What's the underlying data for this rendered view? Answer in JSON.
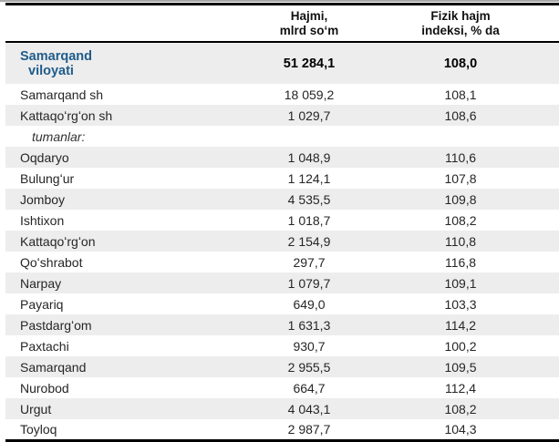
{
  "colors": {
    "accent_blue": "#1F5C8C",
    "band_gray": "#EDEDED",
    "rule_black": "#000000",
    "top_strip_gray": "#A9A9A9"
  },
  "table": {
    "header": {
      "col2_line1": "Hajmi,",
      "col2_line2": "mlrd soʻm",
      "col3_line1": "Fizik hajm",
      "col3_line2": "indeksi, % da"
    },
    "total": {
      "label_line1": "Samarqand",
      "label_line2": "viloyati",
      "value": "51 284,1",
      "index": "108,0"
    },
    "rows": [
      {
        "label": "Samarqand sh",
        "value": "18 059,2",
        "index": "108,1"
      },
      {
        "label": "Kattaqoʻrgʻon sh",
        "value": "1 029,7",
        "index": "108,6"
      },
      {
        "label": "tumanlar:",
        "value": "",
        "index": ""
      },
      {
        "label": "Oqdaryo",
        "value": "1 048,9",
        "index": "110,6"
      },
      {
        "label": "Bulungʻur",
        "value": "1 124,1",
        "index": "107,8"
      },
      {
        "label": "Jomboy",
        "value": "4 535,5",
        "index": "109,8"
      },
      {
        "label": "Ishtixon",
        "value": "1 018,7",
        "index": "108,2"
      },
      {
        "label": "Kattaqoʻrgʻon",
        "value": "2 154,9",
        "index": "110,8"
      },
      {
        "label": "Qoʻshrabot",
        "value": "297,7",
        "index": "116,8"
      },
      {
        "label": "Narpay",
        "value": "1 079,7",
        "index": "109,1"
      },
      {
        "label": "Payariq",
        "value": "649,0",
        "index": "103,3"
      },
      {
        "label": "Pastdargʻom",
        "value": "1 631,3",
        "index": "114,2"
      },
      {
        "label": "Paxtachi",
        "value": "930,7",
        "index": "100,2"
      },
      {
        "label": "Samarqand",
        "value": "2 955,5",
        "index": "109,5"
      },
      {
        "label": "Nurobod",
        "value": "664,7",
        "index": "112,4"
      },
      {
        "label": "Urgut",
        "value": "4 043,1",
        "index": "108,2"
      },
      {
        "label": "Toyloq",
        "value": "2 987,7",
        "index": "104,3"
      }
    ]
  }
}
